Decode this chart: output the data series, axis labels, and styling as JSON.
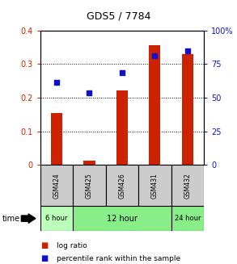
{
  "title": "GDS5 / 7784",
  "samples": [
    "GSM424",
    "GSM425",
    "GSM426",
    "GSM431",
    "GSM432"
  ],
  "log_ratio": [
    0.155,
    0.012,
    0.222,
    0.356,
    0.33
  ],
  "percentile_rank": [
    0.245,
    0.215,
    0.275,
    0.325,
    0.338
  ],
  "bar_color": "#cc2200",
  "dot_color": "#1111cc",
  "ylim_left": [
    0,
    0.4
  ],
  "ylim_right": [
    0,
    100
  ],
  "yticks_left": [
    0,
    0.1,
    0.2,
    0.3,
    0.4
  ],
  "ytick_labels_left": [
    "0",
    "0.1",
    "0.2",
    "0.3",
    "0.4"
  ],
  "yticks_right": [
    0,
    25,
    50,
    75,
    100
  ],
  "ytick_labels_right": [
    "0",
    "25",
    "50",
    "75",
    "100%"
  ],
  "time_groups": [
    {
      "label": "6 hour",
      "start": 0,
      "end": 1,
      "color": "#bbffbb"
    },
    {
      "label": "12 hour",
      "start": 1,
      "end": 4,
      "color": "#88ee88"
    },
    {
      "label": "24 hour",
      "start": 4,
      "end": 5,
      "color": "#88ee88"
    }
  ],
  "time_label": "time",
  "legend_bar_label": "log ratio",
  "legend_dot_label": "percentile rank within the sample",
  "background_color": "#ffffff",
  "plot_bg": "#ffffff",
  "bar_width": 0.35,
  "dot_size": 25,
  "gsm_bg": "#cccccc"
}
